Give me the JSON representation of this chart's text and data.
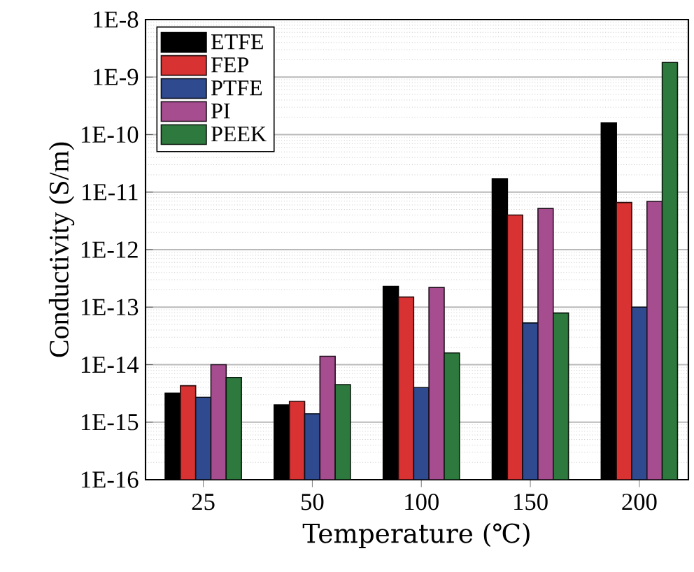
{
  "chart_data": {
    "type": "bar",
    "xlabel": "Temperature (℃)",
    "ylabel": "Conductivity (S/m)",
    "categories": [
      "25",
      "50",
      "100",
      "150",
      "200"
    ],
    "series": [
      {
        "name": "ETFE",
        "color": "#000000",
        "values": [
          3.2e-15,
          2e-15,
          2.3e-13,
          1.7e-11,
          1.6e-10
        ]
      },
      {
        "name": "FEP",
        "color": "#d93232",
        "values": [
          4.3e-15,
          2.3e-15,
          1.5e-13,
          4e-12,
          6.6e-12
        ]
      },
      {
        "name": "PTFE",
        "color": "#2f4a8f",
        "values": [
          2.7e-15,
          1.4e-15,
          4e-15,
          5.3e-14,
          1e-13
        ]
      },
      {
        "name": "PI",
        "color": "#a64d8f",
        "values": [
          1e-14,
          1.4e-14,
          2.2e-13,
          5.2e-12,
          6.9e-12
        ]
      },
      {
        "name": "PEEK",
        "color": "#2e7a3e",
        "values": [
          6e-15,
          4.5e-15,
          1.6e-14,
          7.9e-14,
          1.8e-09
        ]
      }
    ],
    "log": "y",
    "ylim": [
      1e-16,
      1e-08
    ],
    "yticks": [
      {
        "value": 1e-16,
        "label": "1E-16"
      },
      {
        "value": 1e-15,
        "label": "1E-15"
      },
      {
        "value": 1e-14,
        "label": "1E-14"
      },
      {
        "value": 1e-13,
        "label": "1E-13"
      },
      {
        "value": 1e-12,
        "label": "1E-12"
      },
      {
        "value": 1e-11,
        "label": "1E-11"
      },
      {
        "value": 1e-10,
        "label": "1E-10"
      },
      {
        "value": 1e-09,
        "label": "1E-9"
      },
      {
        "value": 1e-08,
        "label": "1E-8"
      }
    ],
    "grid": "y",
    "legend": "top left"
  }
}
